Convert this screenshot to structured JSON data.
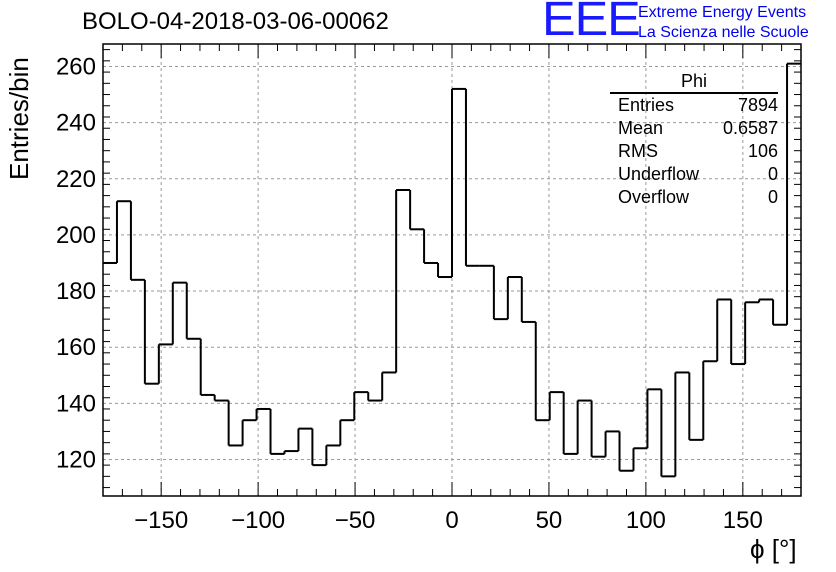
{
  "header": {
    "title": "BOLO-04-2018-03-06-00062",
    "logo_text": "EEE",
    "logo_line1": "Extreme Energy Events",
    "logo_line2": "La Scienza nelle Scuole"
  },
  "stats_box": {
    "name": "Phi",
    "rows": [
      {
        "label": "Entries",
        "value": "7894"
      },
      {
        "label": "Mean",
        "value": "0.6587"
      },
      {
        "label": "RMS",
        "value": "106"
      },
      {
        "label": "Underflow",
        "value": "0"
      },
      {
        "label": "Overflow",
        "value": "0"
      }
    ]
  },
  "chart_data": {
    "type": "bar",
    "style": "step-histogram",
    "xlabel": "ϕ [°]",
    "ylabel": "Entries/bin",
    "xlim": [
      -180,
      180
    ],
    "ylim": [
      107,
      268
    ],
    "bin_width": 7.2,
    "x_ticks": [
      -150,
      -100,
      -50,
      0,
      50,
      100,
      150
    ],
    "x_tick_labels": [
      "−150",
      "−100",
      "−50",
      "0",
      "50",
      "100",
      "150"
    ],
    "y_ticks": [
      120,
      140,
      160,
      180,
      200,
      220,
      240,
      260
    ],
    "y_tick_labels": [
      "120",
      "140",
      "160",
      "180",
      "200",
      "220",
      "240",
      "260"
    ],
    "grid": true,
    "line_color": "#000000",
    "values": [
      190,
      212,
      184,
      147,
      161,
      183,
      163,
      143,
      141,
      125,
      134,
      138,
      122,
      123,
      131,
      118,
      125,
      134,
      144,
      141,
      151,
      216,
      202,
      190,
      185,
      252,
      189,
      189,
      170,
      185,
      169,
      134,
      144,
      122,
      141,
      121,
      130,
      116,
      124,
      145,
      114,
      151,
      127,
      155,
      177,
      154,
      176,
      177,
      168,
      261
    ]
  }
}
